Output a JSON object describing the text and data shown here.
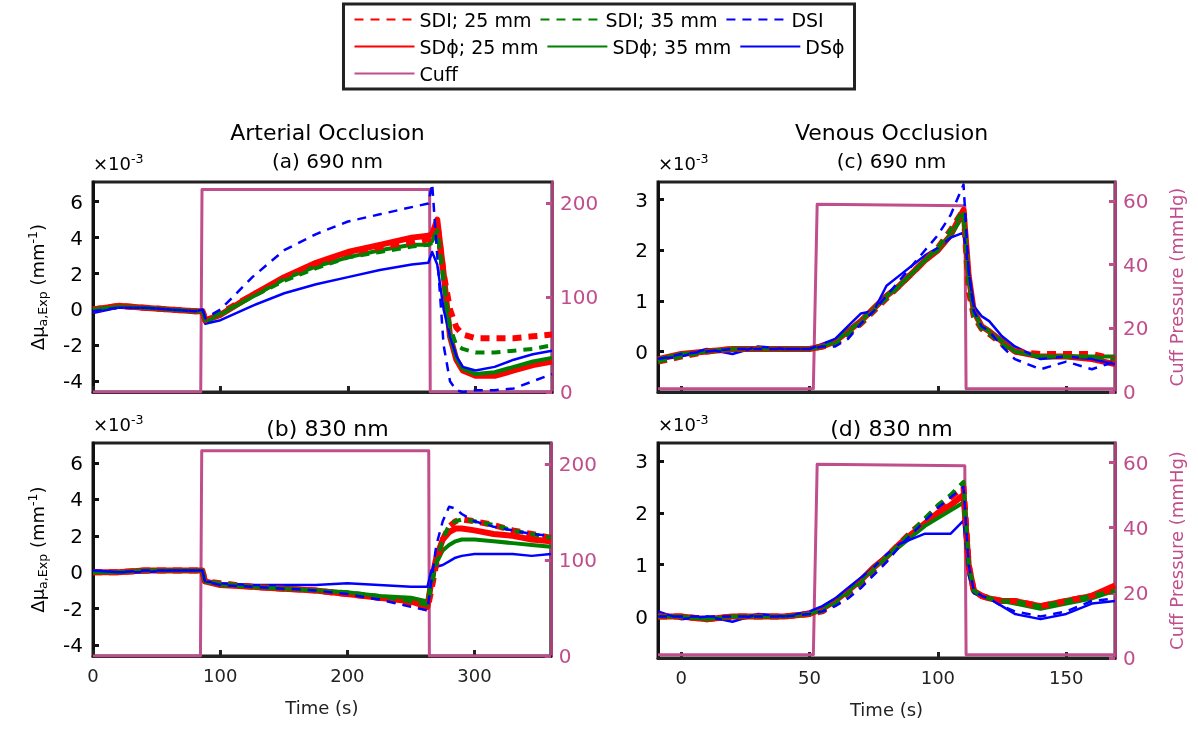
{
  "chart_data": [
    {
      "type": "line",
      "title": "Arterial Occlusion",
      "subtitle": "(a) 690 nm",
      "ylabel": "Δμ$_{a,Exp}$ (mm$^{-1}$)",
      "annotations": [
        "×10$^{-3}$"
      ],
      "x": [
        0,
        20,
        40,
        60,
        80,
        86,
        88,
        100,
        125,
        150,
        175,
        200,
        225,
        250,
        263,
        266,
        270,
        275,
        280,
        285,
        290,
        300,
        315,
        330,
        345,
        360
      ],
      "xlim": [
        0,
        360
      ],
      "xticks": [
        0,
        100,
        200,
        300
      ],
      "ylim": [
        -4.6,
        7.1
      ],
      "yticks": [
        -4,
        -2,
        0,
        2,
        4,
        6
      ],
      "y2lim": [
        0,
        222
      ],
      "y2ticks": [
        0,
        100,
        200
      ],
      "legend": "top",
      "grid": false,
      "tick_labels": "y",
      "series": [
        {
          "name": "SDI; 25 mm",
          "color": "#ff0000",
          "line_style": "dashed",
          "values": [
            0,
            0.2,
            0.1,
            0,
            -0.1,
            -0.1,
            -0.6,
            -0.2,
            0.8,
            1.7,
            2.4,
            3.0,
            3.4,
            3.7,
            3.9,
            4.0,
            4.8,
            2.0,
            0,
            -1.0,
            -1.4,
            -1.6,
            -1.6,
            -1.6,
            -1.5,
            -1.4
          ]
        },
        {
          "name": "SDI; 35 mm",
          "color": "#008000",
          "line_style": "dashed",
          "values": [
            0,
            0.15,
            0.1,
            0,
            -0.1,
            -0.1,
            -0.6,
            -0.2,
            0.7,
            1.6,
            2.3,
            2.9,
            3.2,
            3.5,
            3.6,
            3.7,
            4.4,
            1.5,
            -1.0,
            -2.0,
            -2.2,
            -2.4,
            -2.4,
            -2.3,
            -2.2,
            -2.0
          ]
        },
        {
          "name": "DSI",
          "color": "#0000ff",
          "line_style": "dashed",
          "values": [
            -0.1,
            0.1,
            0.1,
            0,
            -0.1,
            0,
            -0.5,
            0,
            1.8,
            3.3,
            4.2,
            4.9,
            5.3,
            5.7,
            5.9,
            7.0,
            3.0,
            -2.0,
            -4.0,
            -4.5,
            -4.6,
            -4.5,
            -4.5,
            -4.4,
            -4.0,
            -3.6
          ]
        },
        {
          "name": "SDϕ; 25 mm",
          "color": "#ff0000",
          "line_style": "solid",
          "values": [
            0,
            0.2,
            0.1,
            0,
            -0.1,
            -0.1,
            -0.6,
            -0.3,
            0.8,
            1.8,
            2.6,
            3.2,
            3.6,
            4.0,
            4.1,
            4.2,
            5.0,
            2.0,
            -1.5,
            -2.8,
            -3.4,
            -3.7,
            -3.7,
            -3.4,
            -3.1,
            -2.9
          ]
        },
        {
          "name": "SDϕ; 35 mm",
          "color": "#008000",
          "line_style": "solid",
          "values": [
            0,
            0.15,
            0.1,
            0,
            -0.1,
            -0.1,
            -0.7,
            -0.3,
            0.7,
            1.7,
            2.4,
            2.9,
            3.3,
            3.6,
            3.6,
            3.8,
            4.4,
            1.8,
            -1.5,
            -2.7,
            -3.3,
            -3.6,
            -3.5,
            -3.2,
            -2.9,
            -2.7
          ]
        },
        {
          "name": "DSϕ",
          "color": "#0000ff",
          "line_style": "solid",
          "values": [
            -0.2,
            0.1,
            0.1,
            0,
            -0.1,
            0,
            -0.8,
            -0.6,
            0.2,
            0.9,
            1.4,
            1.8,
            2.2,
            2.5,
            2.6,
            3.2,
            2.5,
            0,
            -1.5,
            -2.6,
            -3.2,
            -3.4,
            -3.2,
            -2.8,
            -2.5,
            -2.3
          ]
        },
        {
          "name": "Cuff",
          "color": "#c04e8c",
          "line_style": "solid",
          "axis": "y2",
          "x": [
            0,
            84.5,
            85.5,
            264,
            264.5,
            360
          ],
          "values": [
            0,
            0,
            214,
            214,
            0,
            0
          ]
        }
      ]
    },
    {
      "type": "line",
      "title": "(b) 830 nm",
      "xlabel": "Time (s)",
      "ylabel": "Δμ$_{a,Exp}$ (mm$^{-1}$)",
      "annotations": [
        "×10$^{-3}$"
      ],
      "x": [
        0,
        20,
        40,
        60,
        80,
        86,
        88,
        100,
        125,
        150,
        175,
        200,
        225,
        250,
        263,
        266,
        270,
        275,
        280,
        285,
        290,
        300,
        315,
        330,
        345,
        360
      ],
      "xlim": [
        0,
        360
      ],
      "xticks": [
        0,
        100,
        200,
        300
      ],
      "ylim": [
        -4.6,
        7.1
      ],
      "yticks": [
        -4,
        -2,
        0,
        2,
        4,
        6
      ],
      "y2lim": [
        0,
        222
      ],
      "y2ticks": [
        0,
        100,
        200
      ],
      "grid": false,
      "series": [
        {
          "color": "#ff0000",
          "line_style": "dashed",
          "values": [
            0,
            0,
            0.1,
            0.1,
            0.1,
            0.1,
            -0.5,
            -0.6,
            -0.8,
            -0.9,
            -1.0,
            -1.2,
            -1.4,
            -1.7,
            -2.0,
            -1.0,
            0.5,
            1.8,
            2.5,
            2.8,
            2.9,
            2.8,
            2.6,
            2.3,
            2.1,
            1.9
          ]
        },
        {
          "color": "#008000",
          "line_style": "dashed",
          "values": [
            0,
            0,
            0.1,
            0.1,
            0.1,
            0.1,
            -0.5,
            -0.6,
            -0.8,
            -0.9,
            -1.0,
            -1.1,
            -1.3,
            -1.6,
            -1.8,
            -0.8,
            0.5,
            1.8,
            2.6,
            2.8,
            2.9,
            2.8,
            2.6,
            2.3,
            2.1,
            1.9
          ]
        },
        {
          "color": "#0000ff",
          "line_style": "dashed",
          "values": [
            0.1,
            0,
            0.1,
            0.1,
            0.1,
            0.1,
            -0.5,
            -0.7,
            -0.8,
            -0.9,
            -1.0,
            -1.2,
            -1.5,
            -1.9,
            -2.1,
            -0.5,
            1.5,
            2.8,
            3.6,
            3.5,
            3.2,
            2.8,
            2.5,
            2.3,
            2.1,
            2.0
          ]
        },
        {
          "color": "#ff0000",
          "line_style": "solid",
          "values": [
            0,
            0,
            0.1,
            0.1,
            0.1,
            0.1,
            -0.5,
            -0.7,
            -0.8,
            -0.9,
            -1.0,
            -1.2,
            -1.4,
            -1.6,
            -1.9,
            -0.5,
            0.8,
            1.8,
            2.2,
            2.4,
            2.4,
            2.3,
            2.1,
            2.0,
            1.8,
            1.7
          ]
        },
        {
          "color": "#008000",
          "line_style": "solid",
          "values": [
            0,
            0,
            0.1,
            0.1,
            0.1,
            0.1,
            -0.5,
            -0.7,
            -0.8,
            -0.9,
            -1.0,
            -1.1,
            -1.3,
            -1.4,
            -1.6,
            -0.4,
            0.5,
            1.2,
            1.5,
            1.7,
            1.8,
            1.8,
            1.7,
            1.6,
            1.5,
            1.4
          ]
        },
        {
          "color": "#0000ff",
          "line_style": "solid",
          "values": [
            0.1,
            0,
            0,
            0.1,
            0.1,
            0.1,
            -0.5,
            -0.6,
            -0.7,
            -0.7,
            -0.7,
            -0.6,
            -0.7,
            -0.8,
            -0.8,
            0.1,
            0.3,
            0.4,
            0.6,
            0.8,
            0.9,
            1.0,
            1.0,
            1.0,
            0.9,
            1.0
          ]
        },
        {
          "color": "#c04e8c",
          "line_style": "solid",
          "axis": "y2",
          "x": [
            0,
            84.5,
            85.5,
            264,
            264.5,
            360
          ],
          "values": [
            0,
            0,
            214,
            214,
            0,
            0
          ]
        }
      ]
    },
    {
      "type": "line",
      "title": "Venous Occlusion",
      "subtitle": "(c) 690 nm",
      "y2label": "Cuff Pressure (mmHg)",
      "annotations": [
        "×10$^{-3}$"
      ],
      "x": [
        -9,
        0,
        10,
        20,
        30,
        40,
        50,
        55,
        60,
        65,
        70,
        75,
        80,
        85,
        90,
        95,
        100,
        105,
        110,
        112,
        114,
        117,
        120,
        125,
        130,
        140,
        150,
        160,
        169
      ],
      "xlim": [
        -9,
        169
      ],
      "xticks": [
        0,
        50,
        100,
        150
      ],
      "ylim": [
        -0.8,
        3.35
      ],
      "yticks": [
        0,
        1,
        2,
        3
      ],
      "y2lim": [
        0,
        66
      ],
      "y2ticks": [
        0,
        20,
        40,
        60
      ],
      "grid": false,
      "tick_labels": "y",
      "series": [
        {
          "color": "#ff0000",
          "line_style": "dashed",
          "values": [
            -0.2,
            -0.1,
            0,
            0.05,
            0.05,
            0.05,
            0.05,
            0.1,
            0.15,
            0.35,
            0.55,
            0.8,
            1.05,
            1.3,
            1.55,
            1.8,
            2.05,
            2.4,
            2.8,
            1.2,
            0.7,
            0.45,
            0.35,
            0.15,
            0,
            -0.05,
            -0.05,
            -0.05,
            -0.15
          ]
        },
        {
          "color": "#008000",
          "line_style": "dashed",
          "values": [
            -0.2,
            -0.1,
            0,
            0.05,
            0.05,
            0.05,
            0.05,
            0.1,
            0.15,
            0.35,
            0.55,
            0.8,
            1.05,
            1.3,
            1.55,
            1.8,
            2.05,
            2.4,
            2.8,
            1.3,
            0.7,
            0.45,
            0.35,
            0.15,
            0,
            -0.1,
            -0.1,
            -0.1,
            -0.15
          ]
        },
        {
          "color": "#0000ff",
          "line_style": "dashed",
          "values": [
            -0.15,
            -0.05,
            0,
            0.05,
            0.05,
            0.05,
            0.05,
            0.1,
            0.1,
            0.25,
            0.55,
            0.8,
            1.1,
            1.4,
            1.7,
            2.0,
            2.3,
            2.7,
            3.3,
            1.6,
            0.8,
            0.5,
            0.4,
            0.1,
            -0.15,
            -0.35,
            -0.2,
            -0.35,
            -0.2
          ]
        },
        {
          "color": "#ff0000",
          "line_style": "solid",
          "values": [
            -0.15,
            -0.05,
            0,
            0.05,
            0.05,
            0.05,
            0.05,
            0.1,
            0.2,
            0.4,
            0.6,
            0.85,
            1.1,
            1.3,
            1.55,
            1.8,
            2.0,
            2.3,
            2.8,
            1.5,
            0.8,
            0.5,
            0.4,
            0.2,
            0,
            -0.1,
            -0.1,
            -0.15,
            -0.25
          ]
        },
        {
          "color": "#008000",
          "line_style": "solid",
          "values": [
            -0.15,
            -0.05,
            0,
            0.05,
            0.05,
            0.05,
            0.05,
            0.1,
            0.2,
            0.4,
            0.6,
            0.85,
            1.1,
            1.3,
            1.55,
            1.8,
            2.0,
            2.3,
            2.7,
            1.5,
            0.8,
            0.5,
            0.4,
            0.2,
            0,
            -0.1,
            -0.1,
            -0.1,
            -0.1
          ]
        },
        {
          "color": "#0000ff",
          "line_style": "solid",
          "values": [
            -0.15,
            -0.1,
            0.05,
            -0.05,
            0.1,
            0.05,
            0.05,
            0.15,
            0.25,
            0.5,
            0.75,
            0.8,
            1.3,
            1.5,
            1.7,
            1.9,
            2.05,
            2.25,
            2.35,
            1.6,
            0.9,
            0.7,
            0.6,
            0.3,
            0.1,
            -0.15,
            -0.1,
            -0.15,
            -0.25
          ]
        },
        {
          "color": "#c04e8c",
          "line_style": "solid",
          "axis": "y2",
          "x": [
            -9,
            51.5,
            53,
            110.5,
            111,
            169
          ],
          "values": [
            1,
            1,
            59,
            58.5,
            1,
            1
          ]
        }
      ]
    },
    {
      "type": "line",
      "title": "(d) 830 nm",
      "xlabel": "Time (s)",
      "y2label": "Cuff Pressure (mmHg)",
      "annotations": [
        "×10$^{-3}$"
      ],
      "x": [
        -9,
        0,
        10,
        20,
        30,
        40,
        50,
        55,
        60,
        65,
        70,
        75,
        80,
        85,
        90,
        95,
        100,
        105,
        110,
        112,
        114,
        117,
        120,
        125,
        130,
        140,
        150,
        160,
        169
      ],
      "xlim": [
        -9,
        169
      ],
      "xticks": [
        0,
        50,
        100,
        150
      ],
      "ylim": [
        -0.8,
        3.35
      ],
      "yticks": [
        0,
        1,
        2,
        3
      ],
      "y2lim": [
        0,
        66
      ],
      "y2ticks": [
        0,
        20,
        40,
        60
      ],
      "grid": false,
      "series": [
        {
          "color": "#ff0000",
          "line_style": "dashed",
          "values": [
            0,
            0,
            -0.05,
            0,
            0,
            0,
            0.05,
            0.1,
            0.25,
            0.45,
            0.65,
            0.9,
            1.15,
            1.4,
            1.65,
            1.85,
            2.1,
            2.3,
            2.5,
            1.0,
            0.5,
            0.4,
            0.35,
            0.3,
            0.3,
            0.2,
            0.3,
            0.4,
            0.55
          ]
        },
        {
          "color": "#008000",
          "line_style": "dashed",
          "values": [
            0,
            0,
            -0.05,
            0,
            0,
            0,
            0.05,
            0.1,
            0.25,
            0.45,
            0.65,
            0.9,
            1.15,
            1.4,
            1.65,
            1.9,
            2.15,
            2.35,
            2.6,
            1.0,
            0.5,
            0.4,
            0.35,
            0.3,
            0.3,
            0.2,
            0.3,
            0.4,
            0.5
          ]
        },
        {
          "color": "#0000ff",
          "line_style": "dashed",
          "values": [
            0,
            0,
            0,
            0,
            0,
            0,
            0.05,
            0.1,
            0.2,
            0.35,
            0.55,
            0.8,
            1.05,
            1.35,
            1.6,
            1.85,
            2.1,
            2.3,
            2.5,
            1.0,
            0.5,
            0.4,
            0.35,
            0.2,
            0.1,
            0,
            0.1,
            0.3,
            0.35
          ]
        },
        {
          "color": "#ff0000",
          "line_style": "solid",
          "values": [
            0,
            0,
            -0.05,
            0,
            0,
            0,
            0.05,
            0.15,
            0.3,
            0.5,
            0.7,
            0.95,
            1.15,
            1.4,
            1.6,
            1.8,
            2.0,
            2.15,
            2.35,
            1.0,
            0.5,
            0.4,
            0.35,
            0.3,
            0.3,
            0.2,
            0.3,
            0.4,
            0.6
          ]
        },
        {
          "color": "#008000",
          "line_style": "solid",
          "values": [
            0,
            0,
            -0.05,
            0,
            0,
            0,
            0.05,
            0.15,
            0.3,
            0.5,
            0.7,
            0.95,
            1.15,
            1.35,
            1.55,
            1.75,
            1.9,
            2.05,
            2.2,
            1.0,
            0.5,
            0.4,
            0.35,
            0.3,
            0.25,
            0.15,
            0.25,
            0.35,
            0.5
          ]
        },
        {
          "color": "#0000ff",
          "line_style": "solid",
          "values": [
            0.1,
            -0.05,
            0,
            -0.1,
            0.05,
            0,
            0.1,
            0.2,
            0.35,
            0.55,
            0.75,
            0.95,
            1.2,
            1.4,
            1.5,
            1.6,
            1.6,
            1.6,
            1.85,
            0.8,
            0.45,
            0.4,
            0.35,
            0.2,
            0.05,
            -0.05,
            0.05,
            0.25,
            0.3
          ]
        },
        {
          "color": "#c04e8c",
          "line_style": "solid",
          "axis": "y2",
          "x": [
            -9,
            51.5,
            53,
            110.5,
            111,
            169
          ],
          "values": [
            1,
            1,
            59.5,
            59,
            1,
            1
          ]
        }
      ]
    }
  ]
}
